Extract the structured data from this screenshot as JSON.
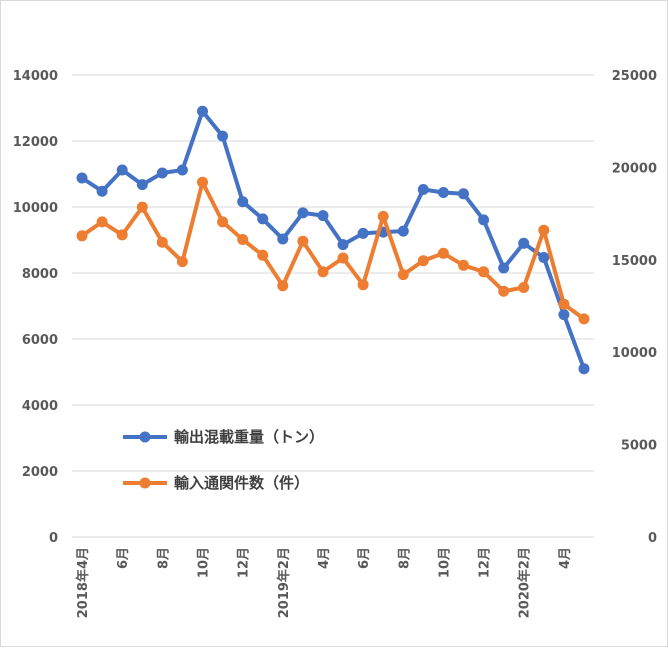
{
  "chart_data": {
    "type": "line",
    "categories": [
      "2018年4月",
      "",
      "6月",
      "",
      "8月",
      "",
      "10月",
      "",
      "12月",
      "",
      "2019年2月",
      "",
      "4月",
      "",
      "6月",
      "",
      "8月",
      "",
      "10月",
      "",
      "12月",
      "",
      "2020年2月",
      "",
      "4月",
      ""
    ],
    "x_tick_labels": [
      "2018年4月",
      "6月",
      "8月",
      "10月",
      "12月",
      "2019年2月",
      "4月",
      "6月",
      "8月",
      "10月",
      "12月",
      "2020年2月",
      "4月"
    ],
    "series": [
      {
        "name": "輸出混載重量（トン）",
        "axis": "left",
        "color": "#4472C4",
        "values": [
          10880,
          10480,
          11120,
          10680,
          11030,
          11120,
          12900,
          12150,
          10160,
          9640,
          9030,
          9820,
          9740,
          8860,
          9200,
          9240,
          9270,
          10530,
          10440,
          10400,
          9610,
          8150,
          8900,
          8470,
          6740,
          5100
        ]
      },
      {
        "name": "輸入通関件数（件）",
        "axis": "right",
        "color": "#ED7D31",
        "values": [
          16300,
          17050,
          16350,
          17850,
          15950,
          14900,
          19200,
          17050,
          16100,
          15250,
          13600,
          16000,
          14350,
          15100,
          13650,
          17350,
          14200,
          14950,
          15350,
          14700,
          14350,
          13300,
          13500,
          16600,
          12600,
          11800
        ]
      }
    ],
    "y_left": {
      "min": 0,
      "max": 14000,
      "ticks": [
        "0",
        "2000",
        "4000",
        "6000",
        "8000",
        "10000",
        "12000",
        "14000"
      ]
    },
    "y_right": {
      "min": 0,
      "max": 25000,
      "ticks": [
        "0",
        "5000",
        "10000",
        "15000",
        "20000",
        "25000"
      ]
    },
    "grid": true,
    "legend_position": "inside-lower-left"
  }
}
